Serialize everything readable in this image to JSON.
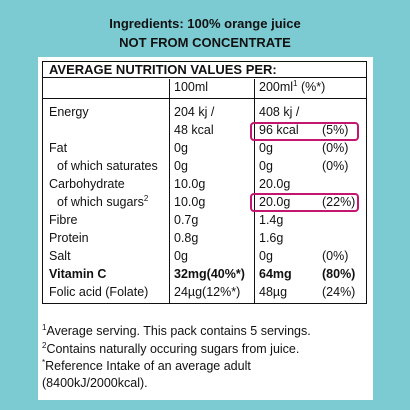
{
  "header": {
    "line1": "Ingredients: 100% orange juice",
    "line2": "NOT FROM CONCENTRATE"
  },
  "table": {
    "heading": "AVERAGE NUTRITION VALUES PER:",
    "col_100": "100ml",
    "col_200": "200ml",
    "col_200_sup": "1",
    "col_pct": "(%*)",
    "rows": [
      {
        "label": "Energy",
        "v100": "204 kj /",
        "v200": "408 kj /",
        "pct": ""
      },
      {
        "label": "",
        "v100": "48 kcal",
        "v200": "96 kcal",
        "pct": "(5%)"
      },
      {
        "label": "Fat",
        "v100": "0g",
        "v200": "0g",
        "pct": "(0%)"
      },
      {
        "label": "of which saturates",
        "v100": "0g",
        "v200": "0g",
        "pct": "(0%)"
      },
      {
        "label": "Carbohydrate",
        "v100": "10.0g",
        "v200": "20.0g",
        "pct": ""
      },
      {
        "label": "of which sugars",
        "label_sup": "2",
        "v100": "10.0g",
        "v200": "20.0g",
        "pct": "(22%)"
      },
      {
        "label": "Fibre",
        "v100": "0.7g",
        "v200": "1.4g",
        "pct": ""
      },
      {
        "label": "Protein",
        "v100": "0.8g",
        "v200": "1.6g",
        "pct": ""
      },
      {
        "label": "Salt",
        "v100": "0g",
        "v200": "0g",
        "pct": "(0%)"
      },
      {
        "label": "Vitamin C",
        "v100": "32mg(40%*)",
        "v200": "64mg",
        "pct": "(80%)"
      },
      {
        "label": "Folic acid (Folate)",
        "v100": "24µg(12%*)",
        "v200": "48µg",
        "pct": "(24%)"
      }
    ]
  },
  "highlight_color": "#c4166f",
  "footnotes": {
    "f1_sup": "1",
    "f1": "Average serving. This pack contains 5 servings.",
    "f2_sup": "2",
    "f2": "Contains naturally occuring sugars from juice.",
    "f3_sup": "*",
    "f3": "Reference Intake of an average adult",
    "f4": "(8400kJ/2000kcal)."
  }
}
